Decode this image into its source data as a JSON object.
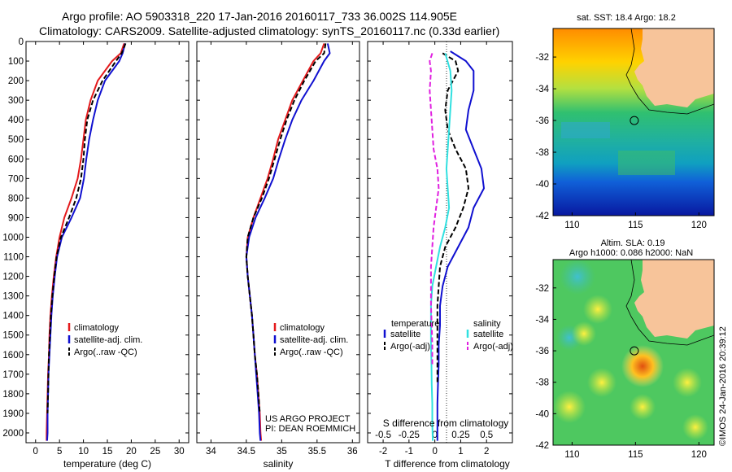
{
  "header": {
    "line1": "Argo profile: AO 5903318_220 17-Jan-2016 20160117_733 36.002S 114.905E",
    "line2": "Climatology: CARS2009. Satellite-adjusted climatology: synTS_20160117.nc (0.33d earlier)"
  },
  "side_stamp": "©IMOS 24-Jan-2016 20:39:12",
  "colors": {
    "climatology": "#e41a1c",
    "satellite": "#1010d0",
    "argo": "#000000",
    "salinity_sat": "#30e0e0",
    "salinity_argo": "#e020e0",
    "land": "#f7c49a"
  },
  "chart_data": [
    {
      "type": "line",
      "id": "temperature",
      "xlabel": "temperature (deg C)",
      "ylabel": "",
      "xlim": [
        -2,
        32
      ],
      "ylim": [
        2050,
        0
      ],
      "xticks": [
        0,
        5,
        10,
        15,
        20,
        25,
        30
      ],
      "yticks": [
        0,
        100,
        200,
        300,
        400,
        500,
        600,
        700,
        800,
        900,
        1000,
        1100,
        1200,
        1300,
        1400,
        1500,
        1600,
        1700,
        1800,
        1900,
        2000
      ],
      "legend": [
        "climatology",
        "satellite-adj. clim.",
        "Argo(..raw -QC)"
      ],
      "series": [
        {
          "name": "climatology",
          "style": "solid",
          "color": "#e41a1c",
          "x": [
            18.5,
            17.8,
            16,
            13,
            11.5,
            10.5,
            10,
            9.5,
            8.8,
            7.5,
            6,
            5,
            4.3,
            3.8,
            3.4,
            3.1,
            2.9,
            2.8,
            2.6,
            2.5,
            2.4,
            2.3,
            2.3
          ],
          "y": [
            10,
            60,
            100,
            200,
            300,
            400,
            500,
            600,
            700,
            800,
            900,
            1000,
            1100,
            1200,
            1300,
            1400,
            1500,
            1600,
            1700,
            1800,
            1900,
            2000,
            2040
          ]
        },
        {
          "name": "satellite-adj. clim.",
          "style": "solid",
          "color": "#1010d0",
          "x": [
            18.7,
            18.2,
            17.5,
            14.5,
            13,
            12,
            11.2,
            10.6,
            10.1,
            9.3,
            7.5,
            5.5,
            4.5,
            4,
            3.6,
            3.3,
            3.1,
            2.9,
            2.7,
            2.6,
            2.5,
            2.5,
            2.4
          ],
          "y": [
            10,
            60,
            100,
            200,
            300,
            400,
            500,
            600,
            700,
            800,
            900,
            1000,
            1100,
            1200,
            1300,
            1400,
            1500,
            1600,
            1700,
            1800,
            1900,
            2000,
            2040
          ]
        },
        {
          "name": "Argo(..raw -QC)",
          "style": "dashed",
          "color": "#000000",
          "x": [
            18.8,
            18,
            16.8,
            14,
            12,
            10.8,
            10.3,
            10,
            9.5,
            8.5,
            7,
            5.3,
            4.4,
            3.9,
            3.5,
            3.2,
            3,
            2.8,
            2.7,
            2.6,
            2.5
          ],
          "y": [
            10,
            60,
            100,
            200,
            300,
            400,
            500,
            600,
            700,
            800,
            900,
            1000,
            1100,
            1200,
            1300,
            1400,
            1500,
            1600,
            1700,
            1800,
            1900
          ]
        }
      ]
    },
    {
      "type": "line",
      "id": "salinity",
      "xlabel": "salinity",
      "ylabel": "",
      "xlim": [
        33.8,
        36.1
      ],
      "ylim": [
        2050,
        0
      ],
      "xticks": [
        34,
        34.5,
        35,
        35.5,
        36
      ],
      "legend": [
        "climatology",
        "satellite-adj. clim.",
        "Argo(..raw -QC)"
      ],
      "annotation": [
        "US ARGO PROJECT",
        "PI: DEAN ROEMMICH"
      ],
      "series": [
        {
          "name": "climatology",
          "style": "solid",
          "color": "#e41a1c",
          "x": [
            35.6,
            35.55,
            35.45,
            35.3,
            35.15,
            35.05,
            34.95,
            34.88,
            34.8,
            34.7,
            34.6,
            34.52,
            34.5,
            34.52,
            34.55,
            34.58,
            34.6,
            34.62,
            34.65,
            34.67,
            34.69,
            34.7,
            34.71
          ],
          "y": [
            10,
            60,
            100,
            200,
            300,
            400,
            500,
            600,
            700,
            800,
            900,
            1000,
            1100,
            1200,
            1300,
            1400,
            1500,
            1600,
            1700,
            1800,
            1900,
            2000,
            2040
          ]
        },
        {
          "name": "satellite-adj. clim.",
          "style": "solid",
          "color": "#1010d0",
          "x": [
            35.65,
            35.68,
            35.6,
            35.45,
            35.28,
            35.15,
            35.05,
            34.96,
            34.88,
            34.76,
            34.63,
            34.54,
            34.5,
            34.52,
            34.55,
            34.58,
            34.6,
            34.62,
            34.64,
            34.66,
            34.68,
            34.69,
            34.7
          ],
          "y": [
            10,
            60,
            100,
            200,
            300,
            400,
            500,
            600,
            700,
            800,
            900,
            1000,
            1100,
            1200,
            1300,
            1400,
            1500,
            1600,
            1700,
            1800,
            1900,
            2000,
            2040
          ]
        },
        {
          "name": "Argo(..raw -QC)",
          "style": "dashed",
          "color": "#000000",
          "x": [
            35.62,
            35.6,
            35.48,
            35.32,
            35.18,
            35.07,
            34.98,
            34.9,
            34.82,
            34.72,
            34.6,
            34.52,
            34.5,
            34.52,
            34.55,
            34.58,
            34.6,
            34.62,
            34.65,
            34.67,
            34.69
          ],
          "y": [
            10,
            60,
            100,
            200,
            300,
            400,
            500,
            600,
            700,
            800,
            900,
            1000,
            1100,
            1200,
            1300,
            1400,
            1500,
            1600,
            1700,
            1800,
            1900
          ]
        }
      ]
    },
    {
      "type": "line",
      "id": "difference",
      "xlabel": "T difference from climatology",
      "xlabel_top": "S difference from climatology",
      "xlim": [
        -2.6,
        3.0
      ],
      "ylim": [
        2050,
        0
      ],
      "xticks": [
        -2,
        -1,
        0,
        1,
        2
      ],
      "xticks_s_labels": [
        "-0.5",
        "-0.25",
        "0",
        "0.25",
        "0.5"
      ],
      "legend_headers": [
        "temperature",
        "salinity"
      ],
      "legend": [
        "satellite",
        "Argo(-adj)",
        "satellite",
        "Argo(-adj)"
      ],
      "series": [
        {
          "name": "satellite",
          "style": "solid",
          "color": "#1010d0",
          "x": [
            0.6,
            1.2,
            1.5,
            1.5,
            1.3,
            1.2,
            1.5,
            1.8,
            1.9,
            1.5,
            1.3,
            0.9,
            0.5,
            0.3,
            0.2,
            0.2,
            0.15,
            0.15,
            0.12,
            0.1,
            0.1,
            0.1
          ],
          "y": [
            50,
            100,
            150,
            250,
            350,
            450,
            550,
            650,
            750,
            850,
            950,
            1050,
            1150,
            1250,
            1350,
            1450,
            1550,
            1650,
            1750,
            1850,
            1950,
            2040
          ]
        },
        {
          "name": "Argo(-adj)",
          "style": "dashed",
          "color": "#000000",
          "x": [
            0.3,
            0.8,
            0.9,
            0.5,
            0.4,
            0.5,
            0.8,
            1.2,
            1.3,
            1.1,
            0.8,
            0.4,
            0.2,
            0.15,
            0.1,
            0.1,
            0.1,
            0.1,
            0.1
          ],
          "y": [
            60,
            100,
            150,
            250,
            350,
            450,
            550,
            650,
            750,
            850,
            950,
            1050,
            1150,
            1250,
            1350,
            1450,
            1550,
            1650,
            1750
          ]
        },
        {
          "name": "satellite (salinity)",
          "style": "solid",
          "color": "#30e0e0",
          "x": [
            0.4,
            0.6,
            0.65,
            0.6,
            0.55,
            0.5,
            0.45,
            0.5,
            0.55,
            0.4,
            0.2,
            0.05,
            -0.1,
            -0.15,
            -0.15,
            -0.15,
            -0.13,
            -0.12,
            -0.1,
            -0.1,
            -0.08
          ],
          "y": [
            60,
            150,
            250,
            350,
            450,
            550,
            650,
            750,
            850,
            950,
            1050,
            1150,
            1250,
            1350,
            1450,
            1550,
            1650,
            1750,
            1850,
            1950,
            2040
          ]
        },
        {
          "name": "Argo(-adj) (salinity)",
          "style": "dashed",
          "color": "#e020e0",
          "x": [
            -0.1,
            -0.2,
            -0.15,
            -0.2,
            -0.15,
            -0.1,
            -0.05,
            0.1,
            0.15,
            0.05,
            -0.05,
            -0.1,
            -0.15,
            -0.15,
            -0.15,
            -0.12,
            -0.1,
            -0.1
          ],
          "y": [
            60,
            100,
            150,
            250,
            350,
            450,
            550,
            650,
            750,
            850,
            950,
            1050,
            1150,
            1250,
            1350,
            1450,
            1550,
            1650
          ]
        }
      ]
    },
    {
      "type": "heatmap",
      "id": "sst-map",
      "title": "sat. SST: 18.4 Argo: 18.2",
      "xlim": [
        108.5,
        121.2
      ],
      "ylim": [
        -42,
        -30.2
      ],
      "xticks": [
        110,
        115,
        120
      ],
      "yticks": [
        -32,
        -34,
        -36,
        -38,
        -40,
        -42
      ],
      "argo_position": [
        114.905,
        -36.002
      ]
    },
    {
      "type": "heatmap",
      "id": "sla-map",
      "title": "Altim. SLA: 0.19",
      "subtitle": "Argo h1000: 0.086 h2000: NaN",
      "xlim": [
        108.5,
        121.2
      ],
      "ylim": [
        -42,
        -30.2
      ],
      "xticks": [
        110,
        115,
        120
      ],
      "yticks": [
        -32,
        -34,
        -36,
        -38,
        -40,
        -42
      ],
      "argo_position": [
        114.905,
        -36.002
      ]
    }
  ]
}
